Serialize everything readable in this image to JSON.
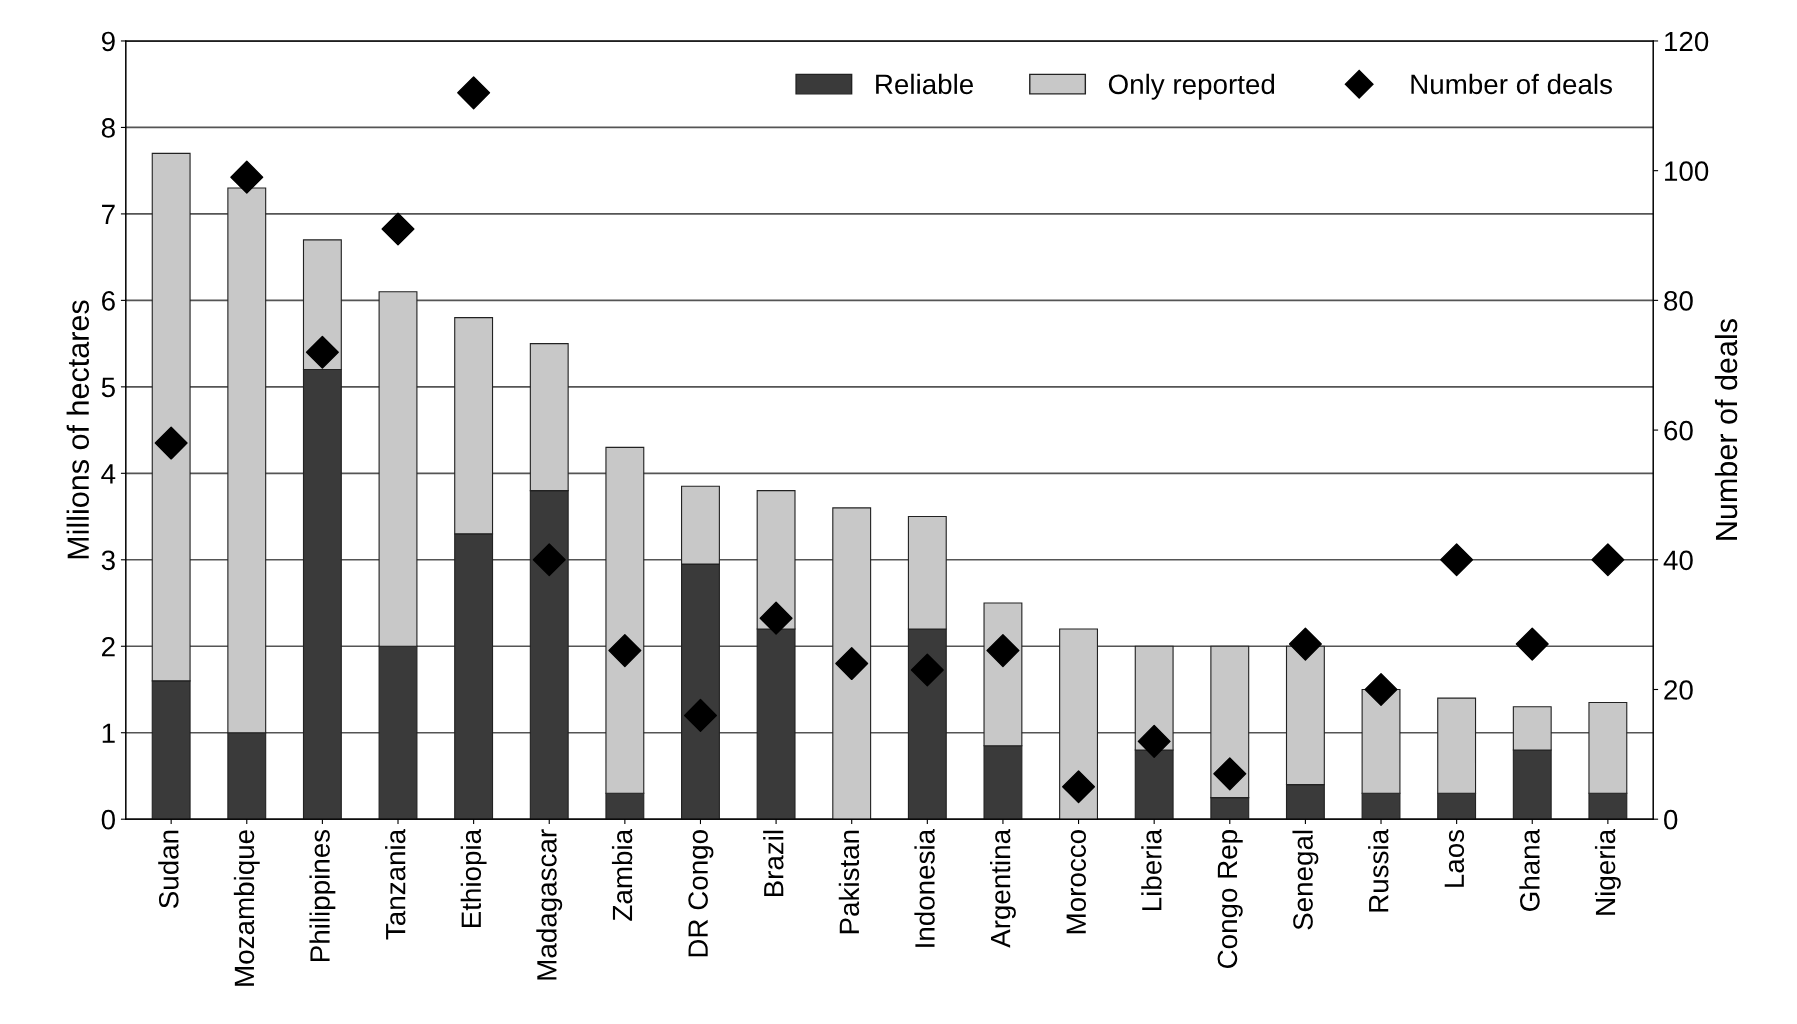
{
  "chart_data": {
    "type": "bar",
    "stacked": true,
    "ylabel": "Millions of hectares",
    "y2label": "Number of deals",
    "categories": [
      "Sudan",
      "Mozambique",
      "Philippines",
      "Tanzania",
      "Ethiopia",
      "Madagascar",
      "Zambia",
      "DR Congo",
      "Brazil",
      "Pakistan",
      "Indonesia",
      "Argentina",
      "Morocco",
      "Liberia",
      "Congo Rep",
      "Senegal",
      "Russia",
      "Laos",
      "Ghana",
      "Nigeria"
    ],
    "series": [
      {
        "name": "Reliable",
        "color": "#3a3a3a",
        "values": [
          1.6,
          1.0,
          5.2,
          2.0,
          3.3,
          3.8,
          0.3,
          2.95,
          2.2,
          0,
          2.2,
          0.85,
          0,
          0.8,
          0.25,
          0.4,
          0.3,
          0.3,
          0.8,
          0.3
        ]
      },
      {
        "name": "Only reported",
        "color": "#c8c8c8",
        "values": [
          6.1,
          6.3,
          1.5,
          4.1,
          2.5,
          1.7,
          4.0,
          0.9,
          1.6,
          3.6,
          1.3,
          1.65,
          2.2,
          1.2,
          1.75,
          1.6,
          1.2,
          1.1,
          0.5,
          1.05
        ]
      },
      {
        "name": "Number of deals",
        "type": "scatter",
        "axis": "y2",
        "marker": "diamond",
        "color": "#000000",
        "values": [
          58,
          99,
          72,
          91,
          112,
          40,
          26,
          16,
          31,
          24,
          23,
          26,
          5,
          12,
          7,
          27,
          20,
          40,
          27,
          40
        ]
      }
    ],
    "ylim": [
      0,
      9
    ],
    "yticks": [
      0,
      1,
      2,
      3,
      4,
      5,
      6,
      7,
      8,
      9
    ],
    "y2lim": [
      0,
      120
    ],
    "y2ticks": [
      0,
      20,
      40,
      60,
      80,
      100,
      120
    ],
    "grid": "y",
    "legend": "top right"
  }
}
